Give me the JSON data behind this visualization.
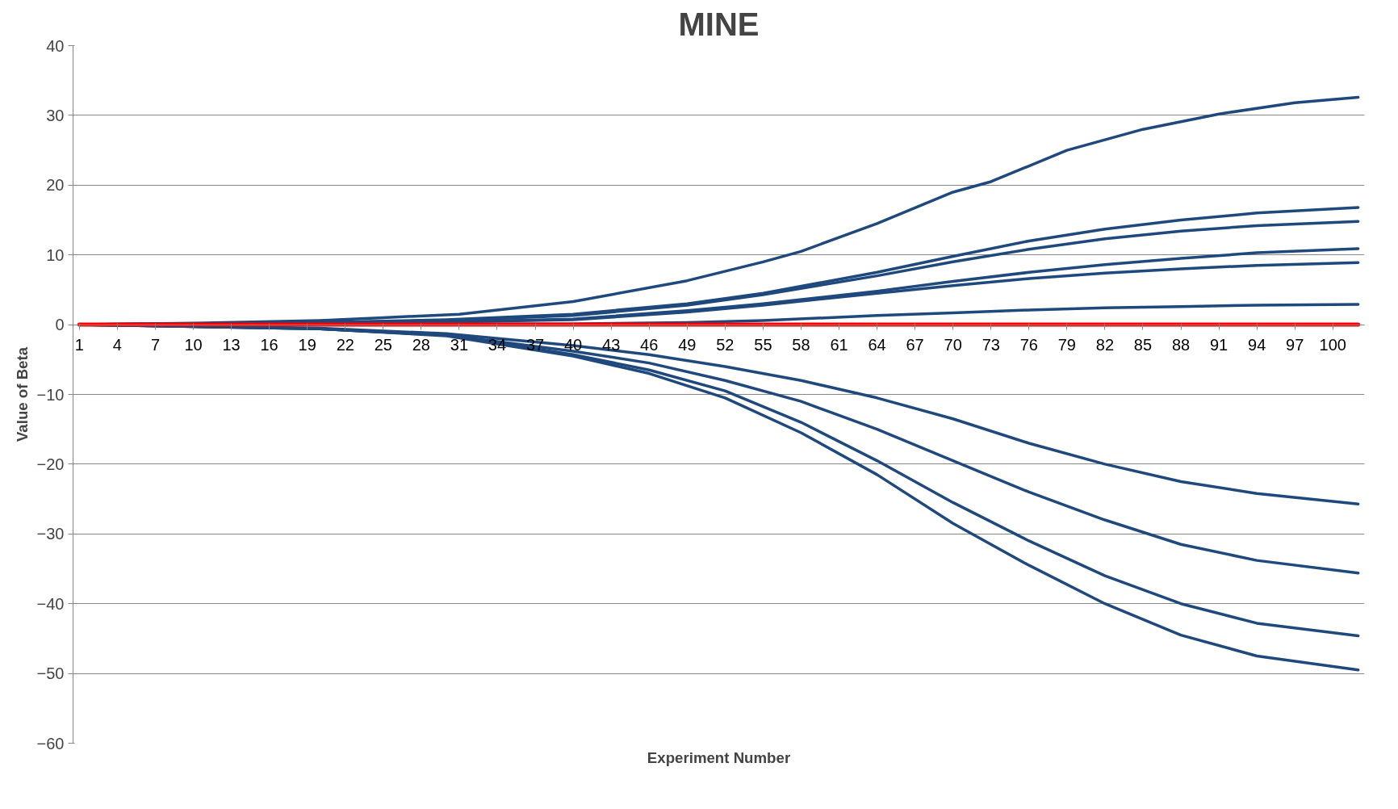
{
  "chart_data": {
    "type": "line",
    "title": "MINE",
    "xlabel": "Experiment Number",
    "ylabel": "Value of Beta",
    "xlim": [
      0.5,
      102.5
    ],
    "xticks": [
      1,
      4,
      7,
      10,
      13,
      16,
      19,
      22,
      25,
      28,
      31,
      34,
      37,
      40,
      43,
      46,
      49,
      52,
      55,
      58,
      61,
      64,
      67,
      70,
      73,
      76,
      79,
      82,
      85,
      88,
      91,
      94,
      97,
      100
    ],
    "ylim": [
      -60,
      40
    ],
    "yticks": [
      -60,
      -50,
      -40,
      -30,
      -20,
      -10,
      0,
      10,
      20,
      30,
      40
    ],
    "grid": "y",
    "series": [
      {
        "color": "#1f497d",
        "x": [
          1,
          10,
          20,
          25,
          31,
          40,
          49,
          55,
          58,
          64,
          70,
          73,
          79,
          85,
          91,
          97,
          102
        ],
        "values": [
          0,
          0.2,
          0.6,
          1.0,
          1.5,
          3.3,
          6.3,
          9,
          10.5,
          14.5,
          19,
          20.5,
          25,
          28,
          30.2,
          31.8,
          32.6
        ]
      },
      {
        "color": "#1f497d",
        "x": [
          1,
          20,
          30,
          40,
          49,
          55,
          64,
          70,
          76,
          82,
          88,
          94,
          102
        ],
        "values": [
          0,
          0.3,
          0.7,
          1.5,
          3,
          4.5,
          7.5,
          9.8,
          12,
          13.7,
          15,
          16,
          16.8
        ]
      },
      {
        "color": "#1f497d",
        "x": [
          1,
          20,
          30,
          40,
          49,
          55,
          64,
          70,
          76,
          82,
          88,
          94,
          102
        ],
        "values": [
          0,
          0.3,
          0.6,
          1.3,
          2.8,
          4.3,
          7,
          9,
          10.8,
          12.3,
          13.4,
          14.2,
          14.8
        ]
      },
      {
        "color": "#1f497d",
        "x": [
          1,
          20,
          30,
          40,
          49,
          55,
          64,
          70,
          76,
          82,
          88,
          94,
          102
        ],
        "values": [
          0,
          0.2,
          0.4,
          0.8,
          2,
          3,
          4.8,
          6.2,
          7.5,
          8.6,
          9.5,
          10.3,
          10.9
        ]
      },
      {
        "color": "#1f497d",
        "x": [
          1,
          20,
          30,
          40,
          49,
          55,
          64,
          70,
          76,
          82,
          88,
          94,
          102
        ],
        "values": [
          0,
          0.2,
          0.4,
          0.7,
          1.8,
          2.8,
          4.5,
          5.6,
          6.6,
          7.4,
          8,
          8.5,
          8.9
        ]
      },
      {
        "color": "#1f497d",
        "x": [
          1,
          20,
          30,
          40,
          49,
          55,
          64,
          70,
          76,
          82,
          88,
          94,
          102
        ],
        "values": [
          0,
          0,
          0.1,
          0.1,
          0.3,
          0.6,
          1.3,
          1.7,
          2.1,
          2.4,
          2.6,
          2.8,
          2.9
        ]
      },
      {
        "color": "#1f497d",
        "x": [
          1,
          20,
          30,
          40,
          46,
          52,
          58,
          64,
          70,
          76,
          82,
          88,
          94,
          102
        ],
        "values": [
          0,
          -0.5,
          -1.3,
          -3,
          -4.3,
          -6,
          -8,
          -10.5,
          -13.5,
          -17,
          -20,
          -22.5,
          -24.2,
          -25.7
        ]
      },
      {
        "color": "#1f497d",
        "x": [
          1,
          20,
          30,
          40,
          46,
          52,
          58,
          64,
          70,
          76,
          82,
          88,
          94,
          102
        ],
        "values": [
          0,
          -0.6,
          -1.5,
          -3.8,
          -5.5,
          -8,
          -11,
          -15,
          -19.5,
          -24,
          -28,
          -31.5,
          -33.8,
          -35.6
        ]
      },
      {
        "color": "#1f497d",
        "x": [
          1,
          20,
          30,
          40,
          46,
          52,
          58,
          64,
          70,
          76,
          82,
          88,
          94,
          102
        ],
        "values": [
          0,
          -0.6,
          -1.5,
          -4.3,
          -6.5,
          -9.5,
          -14,
          -19.5,
          -25.5,
          -31,
          -36,
          -40,
          -42.8,
          -44.6
        ]
      },
      {
        "color": "#1f497d",
        "x": [
          1,
          20,
          30,
          40,
          46,
          52,
          58,
          64,
          70,
          76,
          82,
          88,
          94,
          102
        ],
        "values": [
          0,
          -0.6,
          -1.6,
          -4.5,
          -7,
          -10.5,
          -15.5,
          -21.5,
          -28.5,
          -34.5,
          -40,
          -44.5,
          -47.5,
          -49.5
        ]
      },
      {
        "color": "#ff0000",
        "x": [
          1,
          102
        ],
        "values": [
          0,
          0
        ]
      }
    ]
  }
}
